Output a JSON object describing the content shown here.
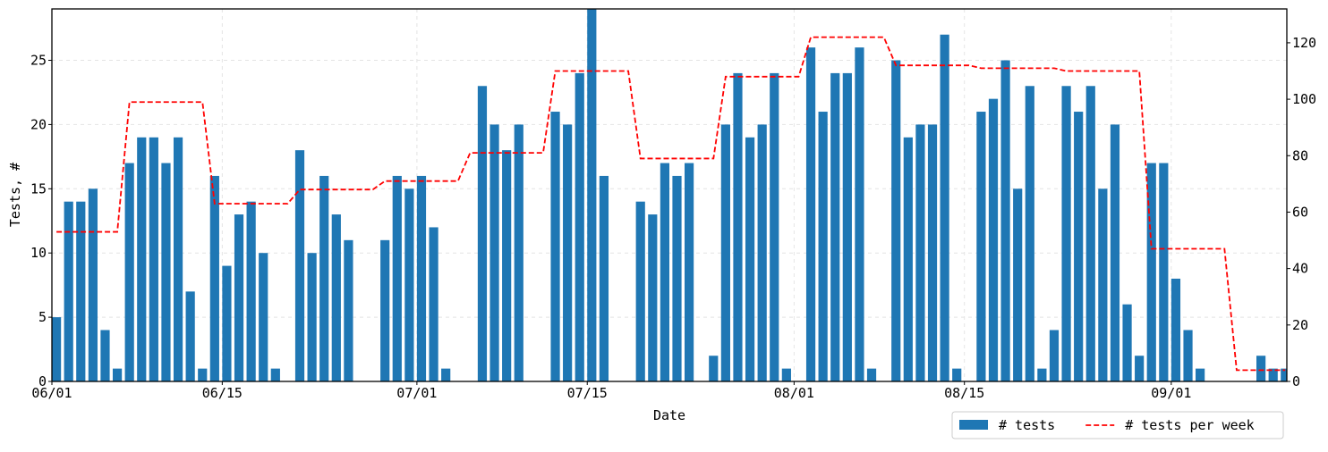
{
  "chart_data": {
    "type": "bar",
    "x_label": "Date",
    "y_label": "Tests, #",
    "grid": true,
    "legend": "lower right",
    "xlim": [
      "06/01",
      "09/11"
    ],
    "xticks": [
      "06/01",
      "06/15",
      "07/01",
      "07/15",
      "08/01",
      "08/15",
      "09/01"
    ],
    "ylim": [
      0,
      29
    ],
    "yticks": [
      0,
      5,
      10,
      15,
      20,
      25
    ],
    "y2lim": [
      0,
      132
    ],
    "y2ticks": [
      0,
      20,
      40,
      60,
      80,
      100,
      120
    ],
    "series": [
      {
        "name": "# tests",
        "type": "bar",
        "color": "#1f77b4",
        "x": [
          "06/01",
          "06/02",
          "06/03",
          "06/04",
          "06/05",
          "06/06",
          "06/07",
          "06/08",
          "06/09",
          "06/10",
          "06/11",
          "06/12",
          "06/13",
          "06/14",
          "06/15",
          "06/16",
          "06/17",
          "06/18",
          "06/19",
          "06/21",
          "06/22",
          "06/23",
          "06/24",
          "06/25",
          "06/28",
          "06/29",
          "06/30",
          "07/01",
          "07/02",
          "07/03",
          "07/06",
          "07/07",
          "07/08",
          "07/09",
          "07/12",
          "07/13",
          "07/14",
          "07/15",
          "07/16",
          "07/19",
          "07/20",
          "07/21",
          "07/22",
          "07/23",
          "07/25",
          "07/26",
          "07/27",
          "07/28",
          "07/29",
          "07/30",
          "07/31",
          "08/02",
          "08/03",
          "08/04",
          "08/05",
          "08/06",
          "08/07",
          "08/09",
          "08/10",
          "08/11",
          "08/12",
          "08/13",
          "08/14",
          "08/16",
          "08/17",
          "08/18",
          "08/19",
          "08/20",
          "08/21",
          "08/22",
          "08/23",
          "08/24",
          "08/25",
          "08/26",
          "08/27",
          "08/28",
          "08/29",
          "08/30",
          "08/31",
          "09/01",
          "09/02",
          "09/03",
          "09/08",
          "09/09",
          "09/10"
        ],
        "values": [
          5,
          14,
          14,
          15,
          4,
          1,
          17,
          19,
          19,
          17,
          19,
          7,
          1,
          16,
          9,
          13,
          14,
          10,
          1,
          18,
          10,
          16,
          13,
          11,
          11,
          16,
          15,
          16,
          12,
          1,
          23,
          20,
          18,
          20,
          21,
          20,
          24,
          29,
          16,
          14,
          13,
          17,
          16,
          17,
          2,
          20,
          24,
          19,
          20,
          24,
          1,
          26,
          21,
          24,
          24,
          26,
          1,
          25,
          19,
          20,
          20,
          27,
          1,
          21,
          22,
          25,
          15,
          23,
          1,
          4,
          23,
          21,
          23,
          15,
          20,
          6,
          2,
          17,
          17,
          8,
          4,
          1,
          2,
          1,
          1
        ]
      },
      {
        "name": "# tests per week",
        "type": "line",
        "axis": "y2",
        "color": "#ff0000",
        "x": [
          "06/01",
          "06/06",
          "06/07",
          "06/13",
          "06/14",
          "06/20",
          "06/21",
          "06/27",
          "06/28",
          "07/04",
          "07/05",
          "07/11",
          "07/12",
          "07/18",
          "07/19",
          "07/25",
          "07/26",
          "08/01",
          "08/02",
          "08/08",
          "08/09",
          "08/15",
          "08/16",
          "08/22",
          "08/23",
          "08/29",
          "08/30",
          "09/05",
          "09/06",
          "09/10"
        ],
        "values": [
          53,
          53,
          99,
          99,
          63,
          63,
          68,
          68,
          71,
          71,
          81,
          81,
          110,
          110,
          79,
          79,
          108,
          108,
          122,
          122,
          112,
          112,
          111,
          111,
          110,
          110,
          47,
          47,
          4,
          4
        ]
      }
    ]
  }
}
